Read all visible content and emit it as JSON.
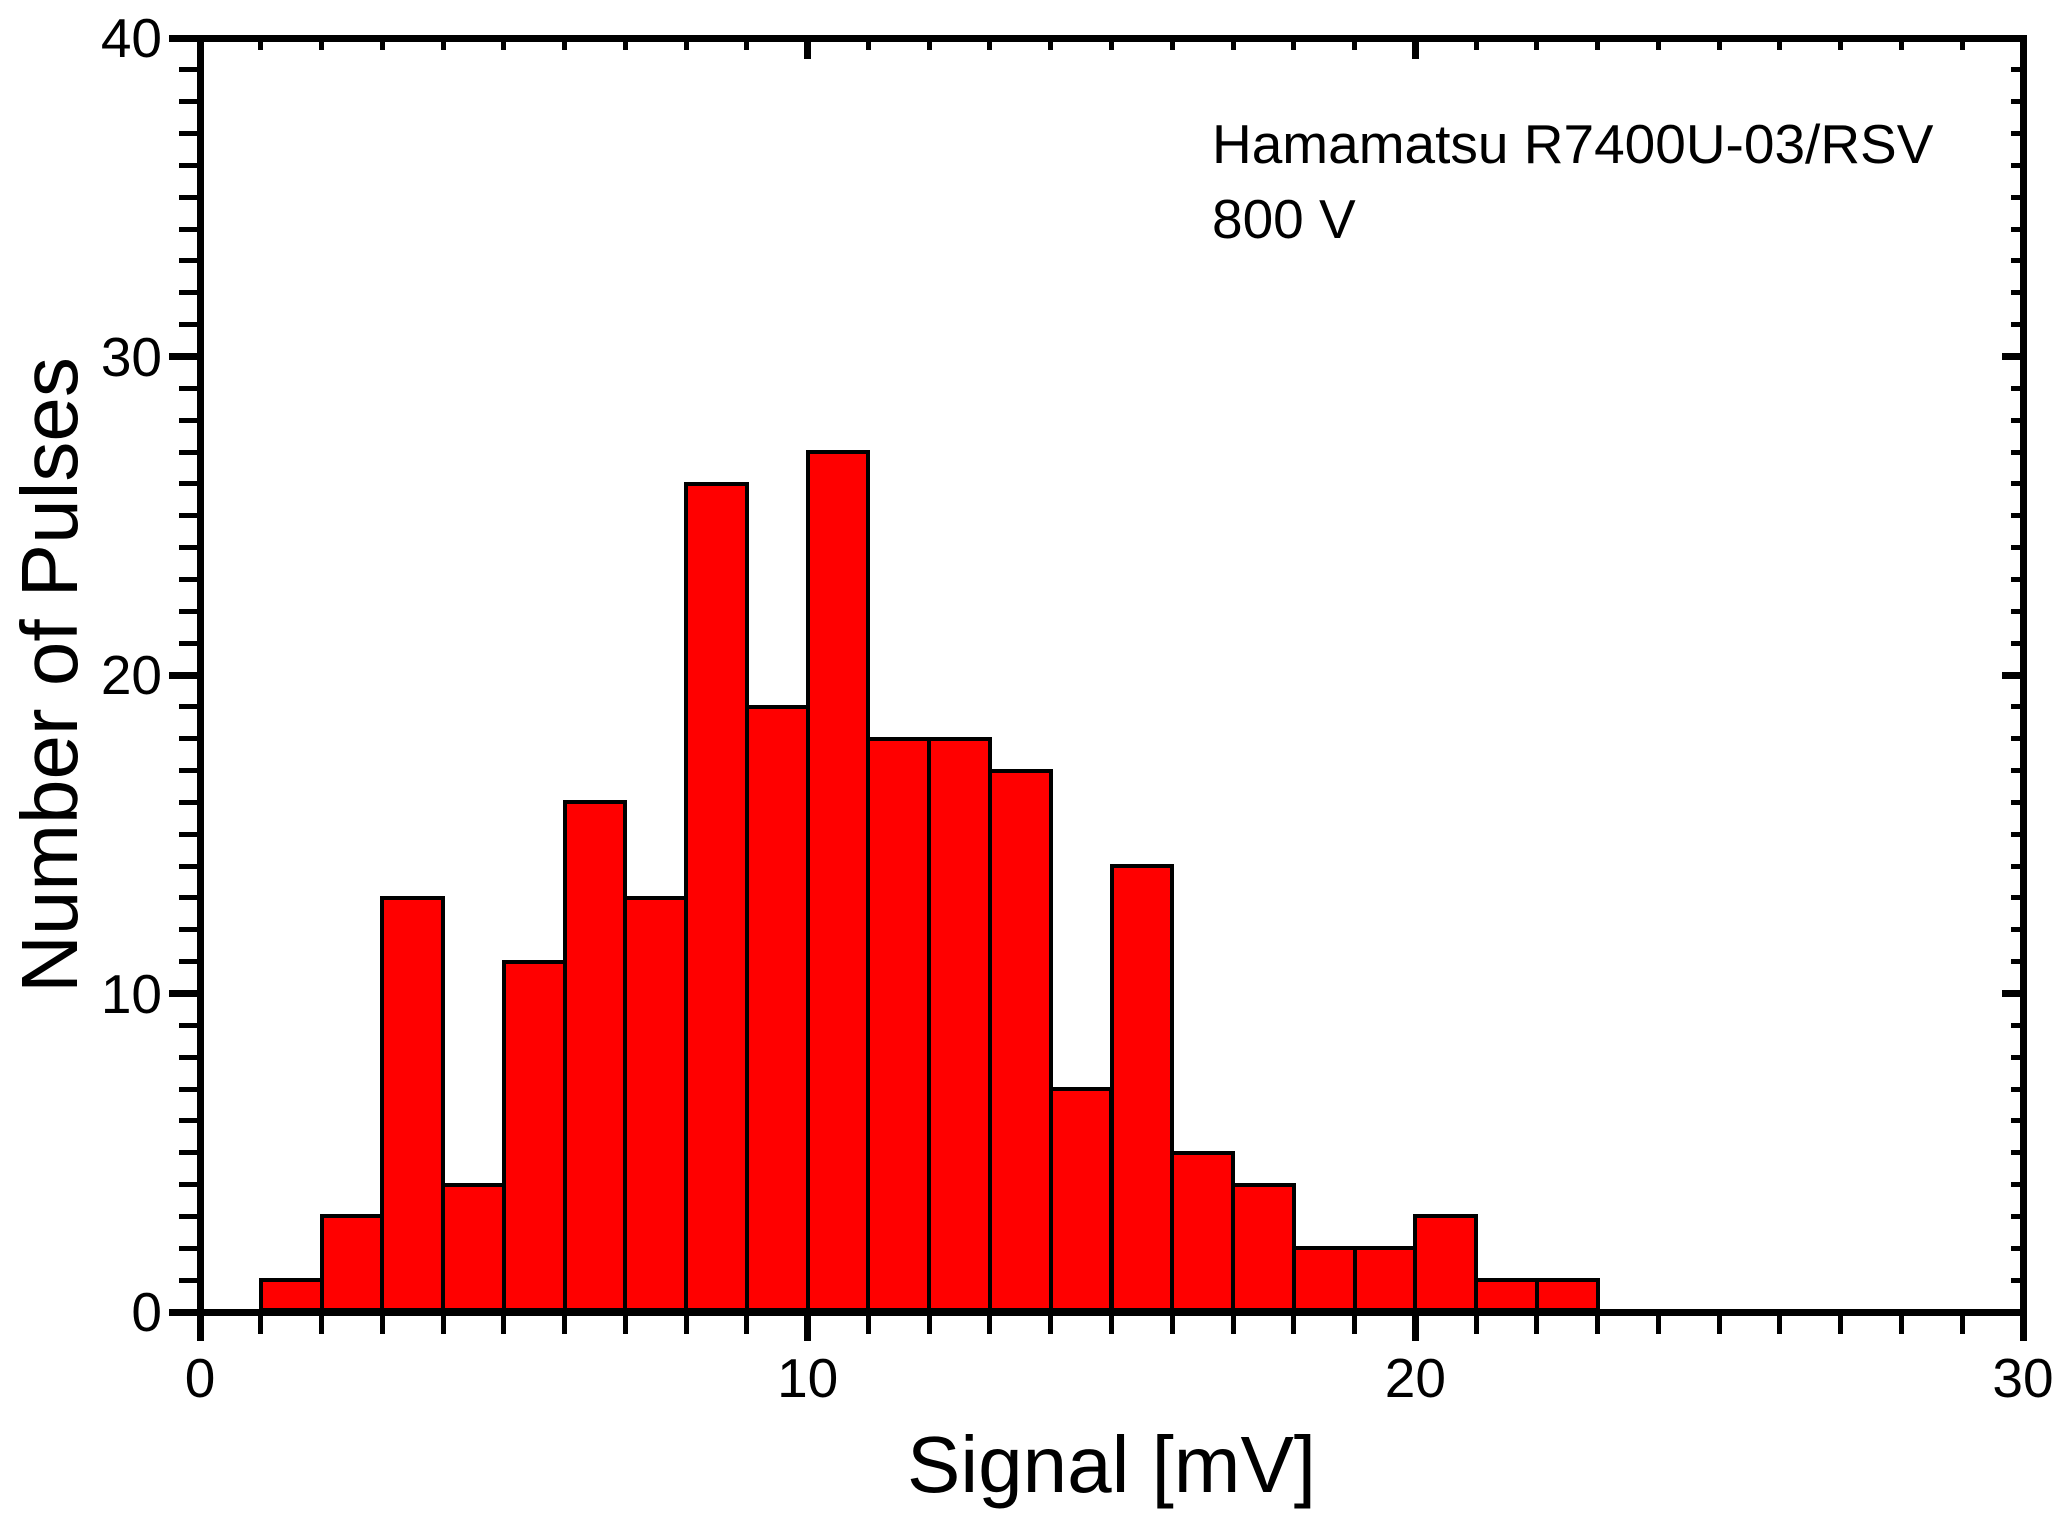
{
  "annotation": {
    "line1": "Hamamatsu R7400U-03/RSV",
    "line2": "800 V"
  },
  "chart_data": {
    "type": "bar",
    "subtype": "histogram",
    "title": "",
    "xlabel": "Signal [mV]",
    "ylabel": "Number of Pulses",
    "annotation_lines": [
      "Hamamatsu R7400U-03/RSV",
      "800 V"
    ],
    "xlim": [
      0,
      30
    ],
    "ylim": [
      0,
      40
    ],
    "x_major_ticks": [
      0,
      10,
      20,
      30
    ],
    "y_major_ticks": [
      0,
      10,
      20,
      30,
      40
    ],
    "x_minor_step": 1,
    "y_minor_step": 1,
    "grid": false,
    "legend": "none",
    "bin_start": 1,
    "bin_width": 1,
    "bin_edges": [
      1,
      2,
      3,
      4,
      5,
      6,
      7,
      8,
      9,
      10,
      11,
      12,
      13,
      14,
      15,
      16,
      17,
      18,
      19,
      20,
      21,
      22,
      23
    ],
    "values": [
      1,
      3,
      13,
      4,
      11,
      16,
      13,
      26,
      19,
      27,
      18,
      18,
      17,
      7,
      14,
      5,
      4,
      2,
      2,
      3,
      1,
      1
    ],
    "bar_color": "#ff0000",
    "bar_edge_color": "#000000",
    "axis_color": "#000000",
    "background": "#ffffff"
  }
}
